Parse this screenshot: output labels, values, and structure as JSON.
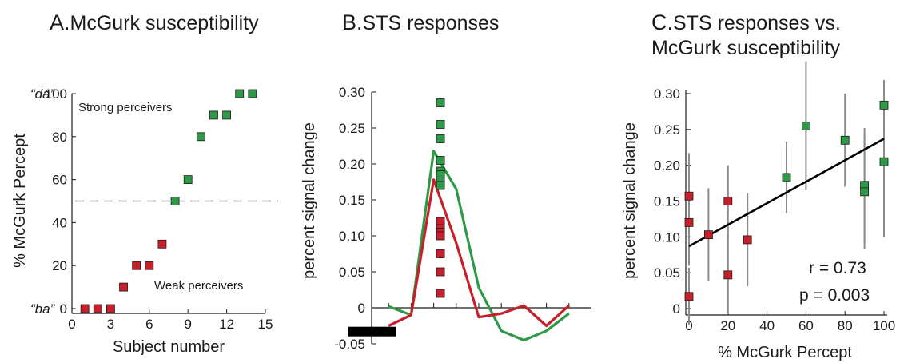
{
  "chart_data": [
    {
      "type": "scatter",
      "panel_letter": "A.",
      "title": "McGurk susceptibility",
      "xlabel": "Subject number",
      "ylabel": "% McGurk Percept",
      "xlim": [
        0,
        15
      ],
      "ylim": [
        0,
        100
      ],
      "xticks": [
        0,
        3,
        6,
        9,
        12,
        15
      ],
      "yticks": [
        0,
        20,
        40,
        60,
        80,
        100
      ],
      "ytick_annotations": [
        {
          "y": 100,
          "text": "“da”"
        },
        {
          "y": 0,
          "text": "“ba”"
        }
      ],
      "reference_line": {
        "y": 50,
        "style": "dashed"
      },
      "group_labels": {
        "strong": "Strong perceivers",
        "weak": "Weak perceivers"
      },
      "colors": {
        "weak": "#c8202a",
        "strong": "#2e9a48",
        "reference": "#9a9a9a"
      },
      "series": [
        {
          "group": "weak",
          "x": [
            1,
            2,
            3,
            4,
            5,
            6,
            7
          ],
          "y": [
            0,
            0,
            0,
            10,
            20,
            20,
            30
          ]
        },
        {
          "group": "strong",
          "x": [
            8,
            9,
            10,
            11,
            12,
            13,
            14
          ],
          "y": [
            50,
            60,
            80,
            90,
            90,
            100,
            100
          ]
        }
      ]
    },
    {
      "type": "line",
      "panel_letter": "B.",
      "title": "STS responses",
      "ylabel": "percent signal change",
      "ylim": [
        -0.05,
        0.3
      ],
      "yticks": [
        "0.30",
        "0.25",
        "0.20",
        "0.15",
        "0.10",
        "0.05",
        "0",
        "-0.05"
      ],
      "colors": {
        "weak": "#c8202a",
        "strong": "#2e9a48",
        "stimulus": "#000000"
      },
      "stimulus_bar": {
        "t_start": 0,
        "t_end": 1.8,
        "y": -0.033
      },
      "series": [
        {
          "group": "strong",
          "t": [
            1,
            2,
            3,
            4,
            5,
            6,
            7,
            8,
            9,
            10,
            11,
            12
          ],
          "y": [
            0.002,
            -0.01,
            0.218,
            0.165,
            0.028,
            -0.032,
            -0.045,
            -0.032,
            -0.008,
            null,
            null,
            null
          ]
        },
        {
          "group": "weak",
          "t": [
            1,
            2,
            3,
            4,
            5,
            6,
            7,
            8,
            9
          ],
          "y": [
            -0.025,
            -0.01,
            0.178,
            0.09,
            -0.013,
            -0.008,
            0.003,
            -0.025,
            0.003
          ]
        }
      ],
      "peak_points": {
        "t": 3.3,
        "strong": [
          0.285,
          0.255,
          0.235,
          0.205,
          0.19,
          0.185,
          0.175,
          0.17
        ],
        "weak": [
          0.12,
          0.11,
          0.105,
          0.1,
          0.075,
          0.05,
          0.02
        ]
      }
    },
    {
      "type": "scatter",
      "panel_letter": "C.",
      "title": "STS responses vs.",
      "title_line2": "McGurk susceptibility",
      "xlabel": "% McGurk Percept",
      "ylabel": "percent signal change",
      "xlim": [
        0,
        100
      ],
      "ylim": [
        0,
        0.3
      ],
      "xticks": [
        0,
        20,
        40,
        60,
        80,
        100
      ],
      "yticks": [
        "0.30",
        "0.25",
        "0.20",
        "0.15",
        "0.10",
        "0.05",
        "0"
      ],
      "stats": {
        "r": "r = 0.73",
        "p": "p = 0.003"
      },
      "fit_line": {
        "x": [
          0,
          100
        ],
        "y": [
          0.087,
          0.237
        ]
      },
      "colors": {
        "weak": "#c8202a",
        "strong": "#2e9a48",
        "fit": "#000000",
        "error": "#8c8c8c"
      },
      "points": [
        {
          "group": "weak",
          "x": 0,
          "y": 0.157,
          "err": 0.06
        },
        {
          "group": "weak",
          "x": 0,
          "y": 0.12,
          "err": 0.06
        },
        {
          "group": "weak",
          "x": 0,
          "y": 0.017,
          "err": 0.04
        },
        {
          "group": "weak",
          "x": 10,
          "y": 0.103,
          "err": 0.065
        },
        {
          "group": "weak",
          "x": 20,
          "y": 0.15,
          "err": 0.05
        },
        {
          "group": "weak",
          "x": 20,
          "y": 0.047,
          "err": 0.055
        },
        {
          "group": "weak",
          "x": 30,
          "y": 0.096,
          "err": 0.065
        },
        {
          "group": "strong",
          "x": 50,
          "y": 0.183,
          "err": 0.05
        },
        {
          "group": "strong",
          "x": 60,
          "y": 0.255,
          "err": 0.09
        },
        {
          "group": "strong",
          "x": 80,
          "y": 0.235,
          "err": 0.065
        },
        {
          "group": "strong",
          "x": 90,
          "y": 0.172,
          "err": 0.08
        },
        {
          "group": "strong",
          "x": 90,
          "y": 0.163,
          "err": 0.08
        },
        {
          "group": "strong",
          "x": 100,
          "y": 0.284,
          "err": 0.035
        },
        {
          "group": "strong",
          "x": 100,
          "y": 0.205,
          "err": 0.105
        }
      ]
    }
  ]
}
